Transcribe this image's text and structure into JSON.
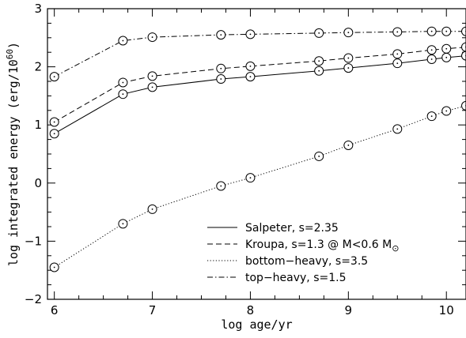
{
  "chart_data": {
    "type": "line",
    "xlabel": "log age/yr",
    "ylabel": "log integrated energy (erg/10",
    "ylabel_exponent": "60",
    "ylabel_close": ")",
    "xlim": [
      5.93,
      10.2
    ],
    "ylim": [
      -2,
      3
    ],
    "xticks": [
      6,
      7,
      8,
      9,
      10
    ],
    "yticks": [
      -2,
      -1,
      0,
      1,
      2,
      3
    ],
    "x_tick_labels": [
      "6",
      "7",
      "8",
      "9",
      "10"
    ],
    "y_tick_labels": [
      "−2",
      "−1",
      "0",
      "1",
      "2",
      "3"
    ],
    "x_minor_step": 0.25,
    "y_minor_step": 0.25,
    "grid": false,
    "legend_position": "bottom-right",
    "series": [
      {
        "name": "Salpeter, s=2.35",
        "dash": "solid",
        "x": [
          6.0,
          6.7,
          7.0,
          7.7,
          8.0,
          8.7,
          9.0,
          9.5,
          9.85,
          10.0,
          10.2
        ],
        "y": [
          0.85,
          1.53,
          1.65,
          1.79,
          1.83,
          1.93,
          1.98,
          2.06,
          2.13,
          2.16,
          2.19
        ]
      },
      {
        "name": "Kroupa, s=1.3 @ M<0.6 M",
        "name_symbol": "⊙",
        "dash": "dashed",
        "x": [
          6.0,
          6.7,
          7.0,
          7.7,
          8.0,
          8.7,
          9.0,
          9.5,
          9.85,
          10.0,
          10.2
        ],
        "y": [
          1.05,
          1.73,
          1.84,
          1.97,
          2.01,
          2.1,
          2.15,
          2.22,
          2.29,
          2.31,
          2.34
        ]
      },
      {
        "name": "bottom−heavy, s=3.5",
        "dash": "dotted",
        "x": [
          6.0,
          6.7,
          7.0,
          7.7,
          8.0,
          8.7,
          9.0,
          9.5,
          9.85,
          10.0,
          10.2
        ],
        "y": [
          -1.45,
          -0.7,
          -0.45,
          -0.05,
          0.09,
          0.46,
          0.65,
          0.93,
          1.15,
          1.24,
          1.33
        ]
      },
      {
        "name": "top−heavy, s=1.5",
        "dash": "dashdot",
        "x": [
          6.0,
          6.7,
          7.0,
          7.7,
          8.0,
          8.7,
          9.0,
          9.5,
          9.85,
          10.0,
          10.2
        ],
        "y": [
          1.83,
          2.45,
          2.51,
          2.55,
          2.56,
          2.58,
          2.59,
          2.6,
          2.61,
          2.61,
          2.61
        ]
      }
    ]
  }
}
